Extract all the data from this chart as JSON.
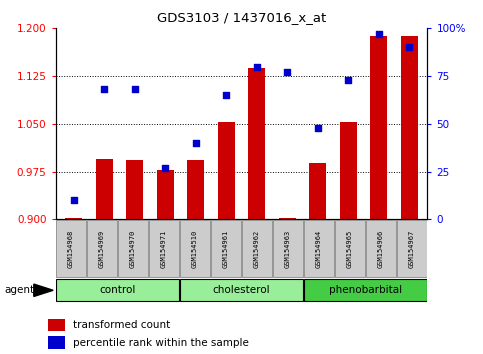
{
  "title": "GDS3103 / 1437016_x_at",
  "samples": [
    "GSM154968",
    "GSM154969",
    "GSM154970",
    "GSM154971",
    "GSM154510",
    "GSM154961",
    "GSM154962",
    "GSM154963",
    "GSM154964",
    "GSM154965",
    "GSM154966",
    "GSM154967"
  ],
  "transformed_count": [
    0.902,
    0.995,
    0.993,
    0.978,
    0.993,
    1.053,
    1.137,
    0.903,
    0.988,
    1.053,
    1.188,
    1.188
  ],
  "percentile_rank": [
    10,
    68,
    68,
    27,
    40,
    65,
    80,
    77,
    48,
    73,
    97,
    90
  ],
  "groups": [
    {
      "name": "control",
      "indices": [
        0,
        1,
        2,
        3
      ],
      "light_color": "#aaffaa",
      "dark_color": "#aaffaa"
    },
    {
      "name": "cholesterol",
      "indices": [
        4,
        5,
        6,
        7
      ],
      "light_color": "#aaffaa",
      "dark_color": "#aaffaa"
    },
    {
      "name": "phenobarbital",
      "indices": [
        8,
        9,
        10,
        11
      ],
      "light_color": "#44dd44",
      "dark_color": "#44dd44"
    }
  ],
  "ylim_left": [
    0.9,
    1.2
  ],
  "ylim_right": [
    0,
    100
  ],
  "yticks_left": [
    0.9,
    0.975,
    1.05,
    1.125,
    1.2
  ],
  "yticks_right": [
    0,
    25,
    50,
    75,
    100
  ],
  "bar_color": "#cc0000",
  "dot_color": "#0000cc",
  "bar_width": 0.55,
  "agent_label": "agent",
  "legend_items": [
    {
      "label": "transformed count",
      "color": "#cc0000"
    },
    {
      "label": "percentile rank within the sample",
      "color": "#0000cc"
    }
  ],
  "label_bg_color": "#cccccc",
  "label_border_color": "#888888"
}
